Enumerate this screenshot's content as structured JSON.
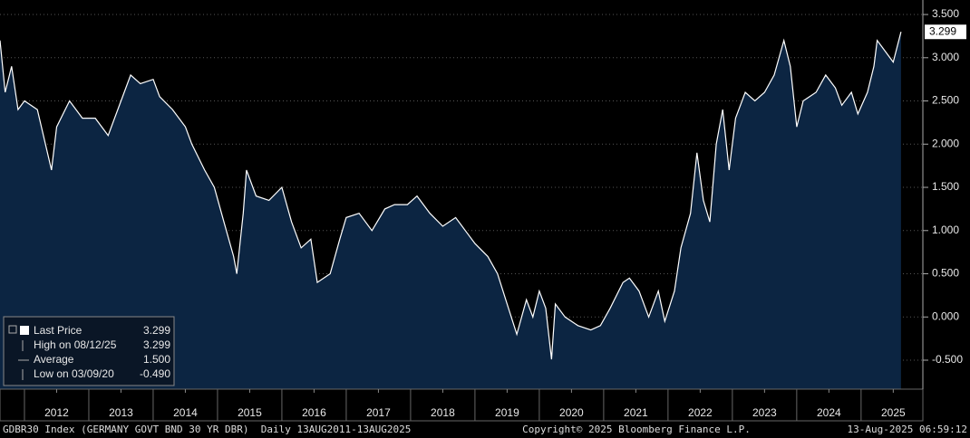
{
  "chart_data": {
    "type": "area",
    "x": [
      2011.62,
      2011.7,
      2011.8,
      2011.9,
      2012.0,
      2012.2,
      2012.42,
      2012.5,
      2012.7,
      2012.9,
      2013.1,
      2013.3,
      2013.5,
      2013.65,
      2013.8,
      2014.0,
      2014.1,
      2014.3,
      2014.5,
      2014.6,
      2014.8,
      2014.95,
      2015.1,
      2015.25,
      2015.3,
      2015.4,
      2015.45,
      2015.6,
      2015.8,
      2016.0,
      2016.15,
      2016.3,
      2016.45,
      2016.55,
      2016.75,
      2016.9,
      2017.0,
      2017.2,
      2017.4,
      2017.6,
      2017.75,
      2017.95,
      2018.1,
      2018.3,
      2018.5,
      2018.7,
      2018.85,
      2019.0,
      2019.2,
      2019.35,
      2019.5,
      2019.65,
      2019.8,
      2019.9,
      2020.0,
      2020.1,
      2020.19,
      2020.25,
      2020.4,
      2020.6,
      2020.8,
      2020.95,
      2021.1,
      2021.3,
      2021.4,
      2021.55,
      2021.7,
      2021.85,
      2021.95,
      2022.1,
      2022.2,
      2022.35,
      2022.45,
      2022.55,
      2022.65,
      2022.75,
      2022.85,
      2022.95,
      2023.05,
      2023.2,
      2023.35,
      2023.5,
      2023.65,
      2023.8,
      2023.9,
      2024.0,
      2024.1,
      2024.3,
      2024.45,
      2024.6,
      2024.7,
      2024.85,
      2024.95,
      2025.1,
      2025.2,
      2025.25,
      2025.4,
      2025.5,
      2025.62
    ],
    "series": [
      {
        "name": "Last Price",
        "color": "#ffffff",
        "fill": "#0c2542",
        "values": [
          3.2,
          2.6,
          2.9,
          2.4,
          2.5,
          2.4,
          1.7,
          2.2,
          2.5,
          2.3,
          2.3,
          2.1,
          2.5,
          2.8,
          2.7,
          2.75,
          2.55,
          2.4,
          2.2,
          2.0,
          1.7,
          1.5,
          1.1,
          0.7,
          0.5,
          1.2,
          1.7,
          1.4,
          1.35,
          1.5,
          1.1,
          0.8,
          0.9,
          0.4,
          0.5,
          0.9,
          1.15,
          1.2,
          1.0,
          1.25,
          1.3,
          1.3,
          1.4,
          1.2,
          1.05,
          1.15,
          1.0,
          0.85,
          0.7,
          0.5,
          0.15,
          -0.2,
          0.2,
          0.0,
          0.3,
          0.1,
          -0.49,
          0.15,
          0.0,
          -0.1,
          -0.15,
          -0.1,
          0.1,
          0.4,
          0.45,
          0.3,
          0.0,
          0.3,
          -0.05,
          0.3,
          0.8,
          1.2,
          1.9,
          1.35,
          1.1,
          2.0,
          2.4,
          1.7,
          2.3,
          2.6,
          2.5,
          2.6,
          2.8,
          3.2,
          2.9,
          2.2,
          2.5,
          2.6,
          2.8,
          2.65,
          2.45,
          2.6,
          2.35,
          2.6,
          2.9,
          3.2,
          3.05,
          2.95,
          3.299
        ]
      }
    ],
    "xlim": [
      2011.62,
      2025.96
    ],
    "xticks": [
      {
        "value": 2012.5,
        "label": "2012"
      },
      {
        "value": 2013.5,
        "label": "2013"
      },
      {
        "value": 2014.5,
        "label": "2014"
      },
      {
        "value": 2015.5,
        "label": "2015"
      },
      {
        "value": 2016.5,
        "label": "2016"
      },
      {
        "value": 2017.5,
        "label": "2017"
      },
      {
        "value": 2018.5,
        "label": "2018"
      },
      {
        "value": 2019.5,
        "label": "2019"
      },
      {
        "value": 2020.5,
        "label": "2020"
      },
      {
        "value": 2021.5,
        "label": "2021"
      },
      {
        "value": 2022.5,
        "label": "2022"
      },
      {
        "value": 2023.5,
        "label": "2023"
      },
      {
        "value": 2024.5,
        "label": "2024"
      },
      {
        "value": 2025.5,
        "label": "2025"
      }
    ],
    "ylim": [
      -0.835,
      3.668
    ],
    "yticks": [
      {
        "value": -0.5,
        "label": "-0.500"
      },
      {
        "value": 0,
        "label": "0.000"
      },
      {
        "value": 0.5,
        "label": "0.500"
      },
      {
        "value": 1,
        "label": "1.000"
      },
      {
        "value": 1.5,
        "label": "1.500"
      },
      {
        "value": 2,
        "label": "2.000"
      },
      {
        "value": 2.5,
        "label": "2.500"
      },
      {
        "value": 3,
        "label": "3.000"
      },
      {
        "value": 3.5,
        "label": "3.500"
      }
    ],
    "grid": true,
    "legend": {
      "labels": [
        "Last Price",
        "High on 08/12/25",
        "Average",
        "Low on 03/09/20"
      ],
      "values": [
        3.299,
        3.299,
        1.5,
        -0.49
      ],
      "value_labels": [
        "3.299",
        "3.299",
        "1.500",
        "-0.490"
      ]
    },
    "footer": {
      "left": "GDBR30 Index (GERMANY GOVT BND 30 YR DBR)  Daily 13AUG2011-13AUG2025",
      "center": "Copyright© 2025 Bloomberg Finance L.P.",
      "right": "13-Aug-2025 06:59:12"
    }
  }
}
